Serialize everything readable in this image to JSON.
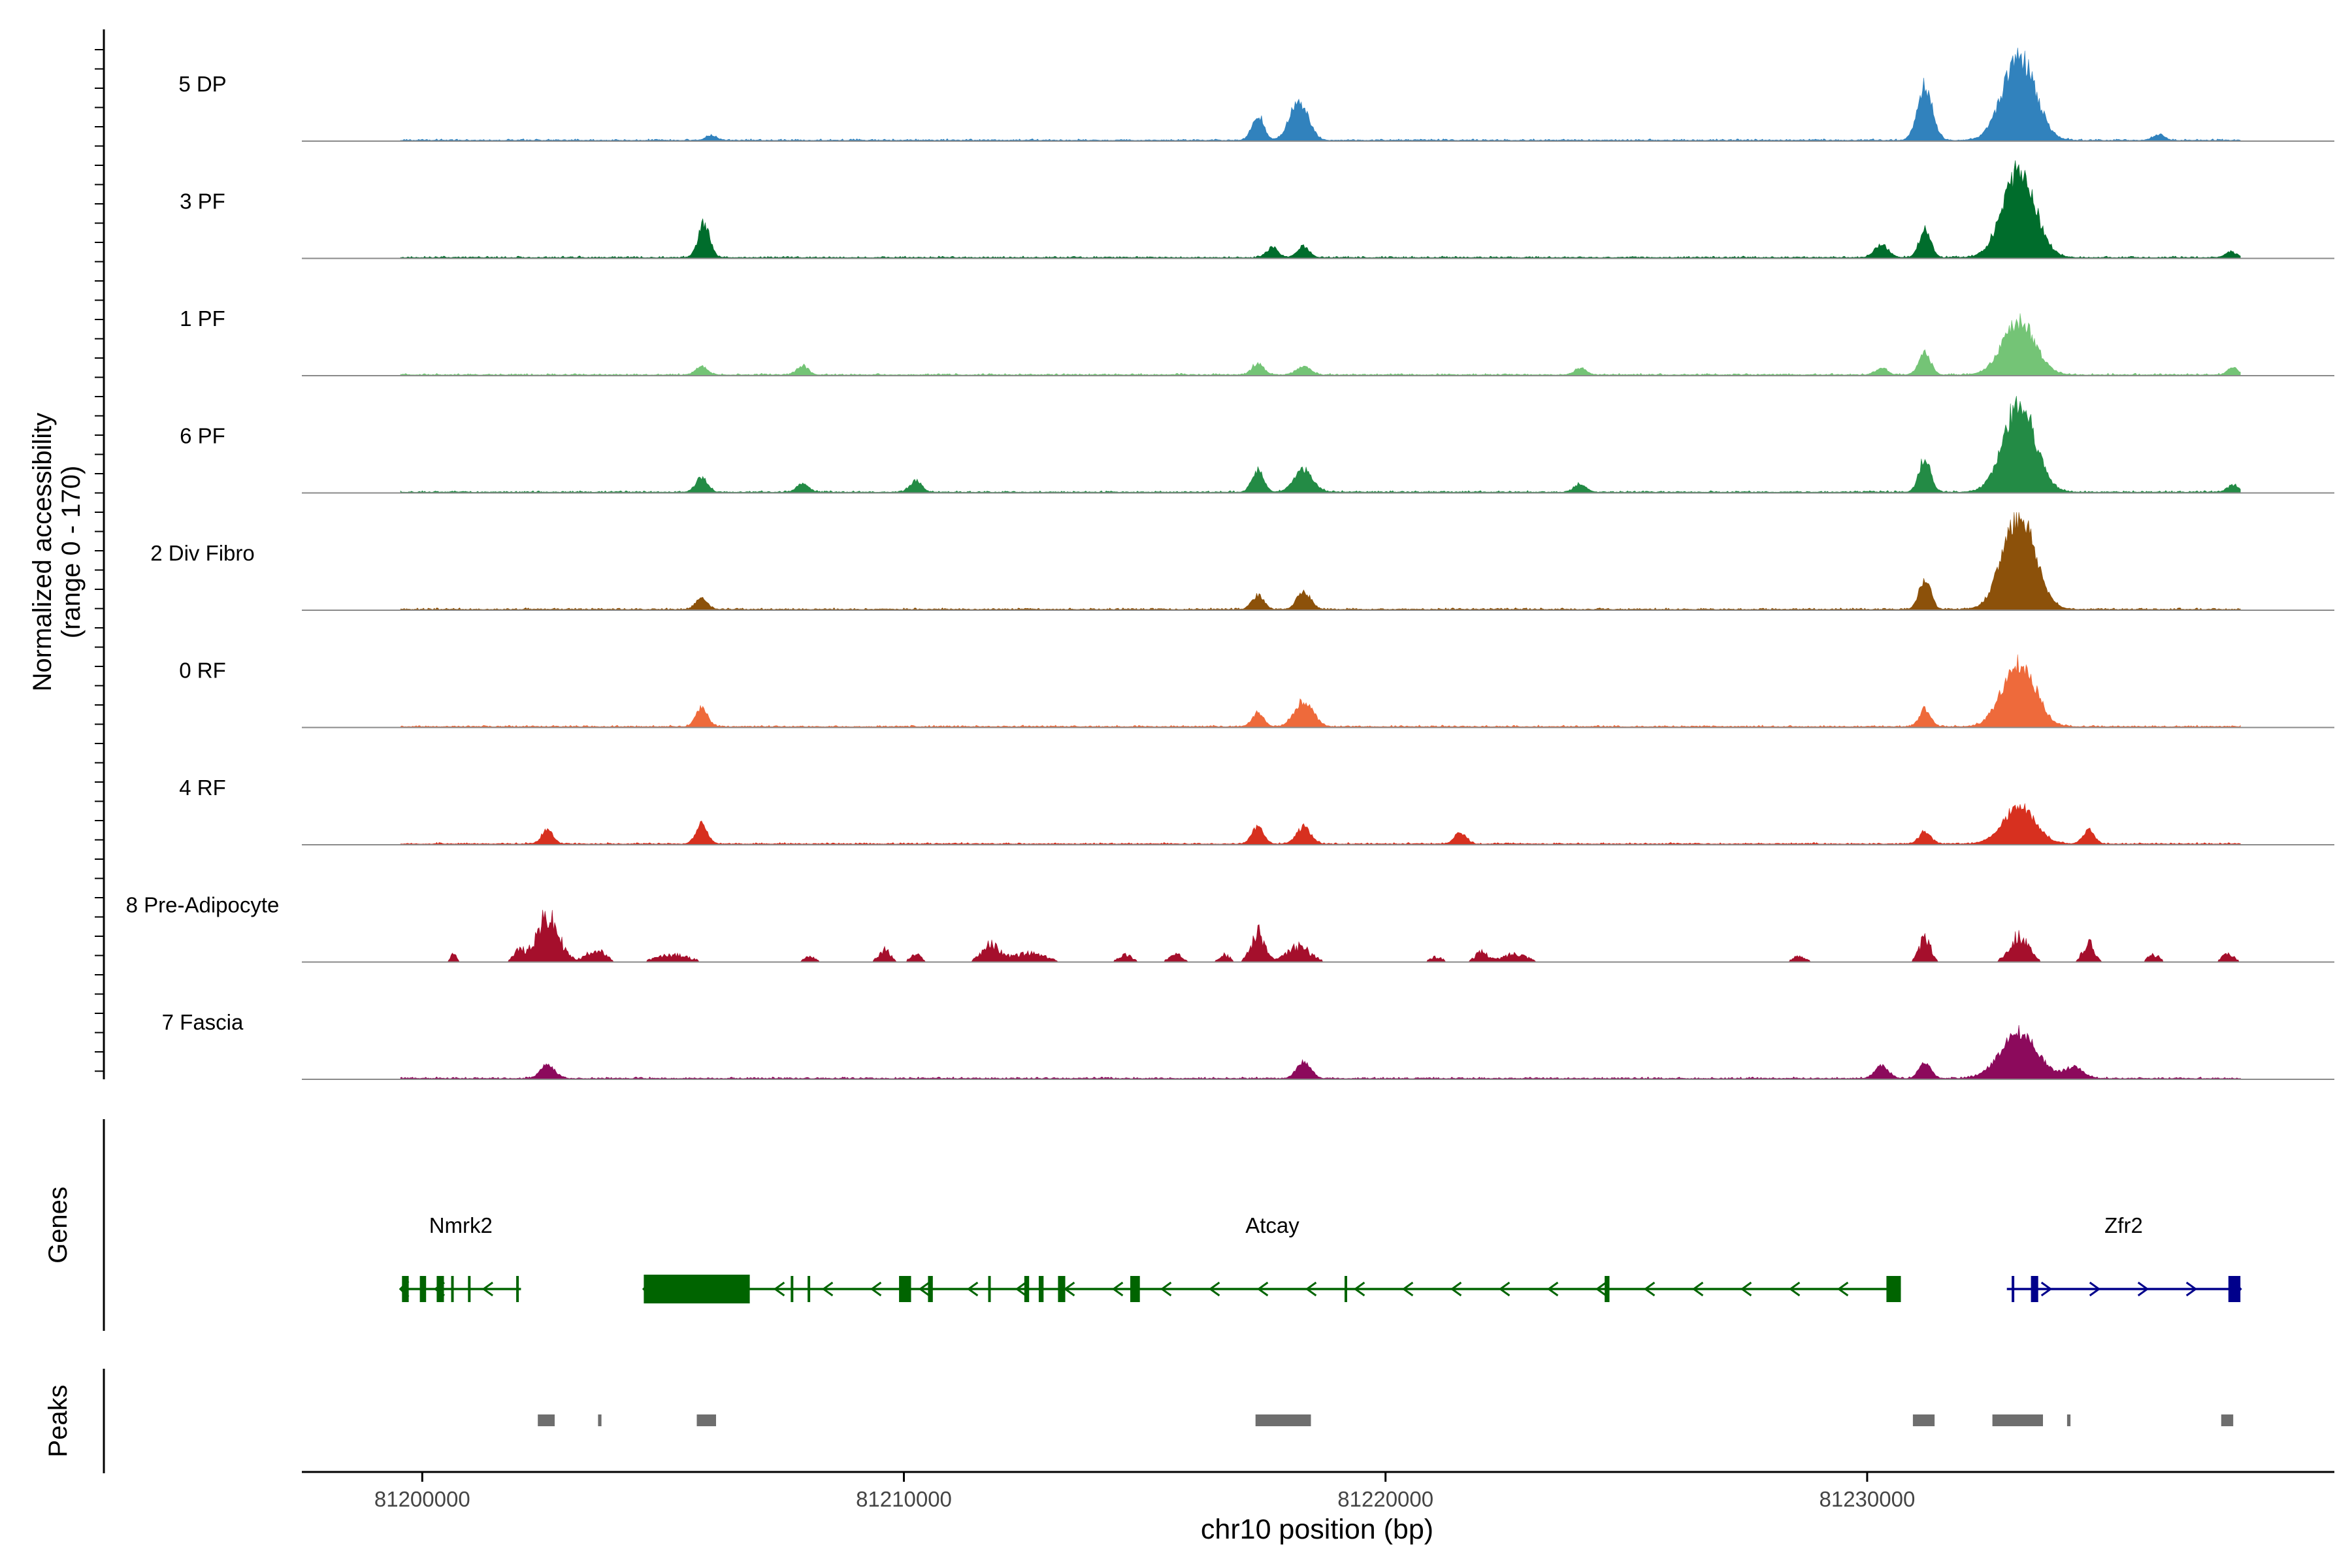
{
  "chart_data": {
    "type": "area",
    "title": "",
    "coverage_panel": {
      "ylabel_line1": "Normalized accessibility",
      "ylabel_line2": "(range 0 - 170)",
      "ylim": [
        0,
        170
      ],
      "tracks": [
        {
          "name": "5 DP",
          "color": "#3182BD",
          "peaks": [
            [
              81206000,
              8,
              250
            ],
            [
              81217350,
              45,
              250
            ],
            [
              81218200,
              70,
              400
            ],
            [
              81231200,
              95,
              320
            ],
            [
              81233150,
              150,
              700
            ],
            [
              81236050,
              10,
              250
            ]
          ]
        },
        {
          "name": "3 PF",
          "color": "#006D2C",
          "peaks": [
            [
              81205850,
              60,
              250
            ],
            [
              81217650,
              18,
              250
            ],
            [
              81218300,
              20,
              250
            ],
            [
              81230300,
              22,
              300
            ],
            [
              81231200,
              50,
              250
            ],
            [
              81233150,
              155,
              700
            ],
            [
              81237550,
              10,
              250
            ]
          ]
        },
        {
          "name": "1 PF",
          "color": "#74C476",
          "peaks": [
            [
              81205800,
              15,
              250
            ],
            [
              81207900,
              15,
              250
            ],
            [
              81217350,
              20,
              250
            ],
            [
              81218300,
              15,
              300
            ],
            [
              81224050,
              12,
              250
            ],
            [
              81230300,
              12,
              250
            ],
            [
              81231200,
              40,
              250
            ],
            [
              81233150,
              95,
              700
            ],
            [
              81237600,
              12,
              250
            ]
          ]
        },
        {
          "name": "6 PF",
          "color": "#238B45",
          "peaks": [
            [
              81205800,
              25,
              250
            ],
            [
              81207900,
              15,
              250
            ],
            [
              81210250,
              20,
              250
            ],
            [
              81217350,
              40,
              250
            ],
            [
              81218300,
              40,
              400
            ],
            [
              81224050,
              15,
              250
            ],
            [
              81231200,
              60,
              250
            ],
            [
              81233150,
              155,
              700
            ],
            [
              81237600,
              12,
              250
            ]
          ]
        },
        {
          "name": "2 Div Fibro",
          "color": "#8C510A",
          "peaks": [
            [
              81205800,
              20,
              250
            ],
            [
              81217350,
              25,
              250
            ],
            [
              81218300,
              30,
              300
            ],
            [
              81231200,
              55,
              250
            ],
            [
              81233150,
              170,
              700
            ]
          ]
        },
        {
          "name": "0 RF",
          "color": "#EE6A3B",
          "peaks": [
            [
              81205800,
              35,
              250
            ],
            [
              81217350,
              25,
              250
            ],
            [
              81218300,
              45,
              400
            ],
            [
              81231200,
              30,
              250
            ],
            [
              81233150,
              115,
              700
            ]
          ]
        },
        {
          "name": "4 RF",
          "color": "#D7301F",
          "peaks": [
            [
              81202600,
              25,
              250
            ],
            [
              81205800,
              35,
              250
            ],
            [
              81217350,
              30,
              250
            ],
            [
              81218300,
              30,
              300
            ],
            [
              81221550,
              20,
              250
            ],
            [
              81231200,
              22,
              250
            ],
            [
              81233150,
              65,
              700
            ],
            [
              81234600,
              25,
              250
            ]
          ]
        },
        {
          "name": "8 Pre-Adipocyte",
          "color": "#A50F2C",
          "peaks": [
            [
              81200650,
              15,
              150
            ],
            [
              81202000,
              22,
              250
            ],
            [
              81202600,
              90,
              500
            ],
            [
              81203600,
              25,
              400
            ],
            [
              81205200,
              15,
              700
            ],
            [
              81208050,
              12,
              250
            ],
            [
              81209600,
              25,
              250
            ],
            [
              81210250,
              15,
              250
            ],
            [
              81211800,
              35,
              400
            ],
            [
              81212600,
              18,
              700
            ],
            [
              81214600,
              15,
              300
            ],
            [
              81215650,
              15,
              300
            ],
            [
              81216650,
              15,
              250
            ],
            [
              81217350,
              60,
              300
            ],
            [
              81218200,
              32,
              500
            ],
            [
              81221050,
              10,
              300
            ],
            [
              81222000,
              20,
              300
            ],
            [
              81222700,
              18,
              500
            ],
            [
              81228600,
              12,
              300
            ],
            [
              81231200,
              48,
              250
            ],
            [
              81233150,
              55,
              400
            ],
            [
              81234600,
              40,
              250
            ],
            [
              81235950,
              15,
              250
            ],
            [
              81237500,
              18,
              250
            ]
          ]
        },
        {
          "name": "7 Fascia",
          "color": "#8C0A5C",
          "peaks": [
            [
              81202600,
              25,
              300
            ],
            [
              81218300,
              30,
              300
            ],
            [
              81230300,
              22,
              300
            ],
            [
              81231200,
              30,
              250
            ],
            [
              81233150,
              80,
              800
            ],
            [
              81234300,
              20,
              400
            ]
          ]
        }
      ]
    },
    "genes_panel": {
      "ylabel": "Genes",
      "genes": [
        {
          "name": "Nmrk2",
          "strand": "-",
          "color": "#006400",
          "start": 81199550,
          "end": 81202050,
          "exons": [
            [
              81199580,
              81199720
            ],
            [
              81199950,
              81200080
            ],
            [
              81200300,
              81200450
            ],
            [
              81200600,
              81200650
            ],
            [
              81200950,
              81201000
            ],
            [
              81201950,
              81202000
            ]
          ]
        },
        {
          "name": "Atcay",
          "strand": "-",
          "color": "#006400",
          "start": 81204600,
          "end": 81230700,
          "exons": [
            [
              81204600,
              81206800
            ],
            [
              81207650,
              81207700
            ],
            [
              81208000,
              81208050
            ],
            [
              81209900,
              81210150
            ],
            [
              81210500,
              81210600
            ],
            [
              81211750,
              81211800
            ],
            [
              81212500,
              81212600
            ],
            [
              81212800,
              81212900
            ],
            [
              81213200,
              81213350
            ],
            [
              81214700,
              81214900
            ],
            [
              81219150,
              81219200
            ],
            [
              81224550,
              81224650
            ],
            [
              81230400,
              81230700
            ]
          ]
        },
        {
          "name": "Zfr2",
          "strand": "+",
          "color": "#00008B",
          "start": 81232900,
          "end": 81237750,
          "exons": [
            [
              81233000,
              81233050
            ],
            [
              81233400,
              81233550
            ],
            [
              81237500,
              81237750
            ]
          ]
        }
      ]
    },
    "peaks_panel": {
      "ylabel": "Peaks",
      "color": "#6E6E6E",
      "regions": [
        [
          81202400,
          81202750
        ],
        [
          81203650,
          81203720
        ],
        [
          81205700,
          81206100
        ],
        [
          81217300,
          81218450
        ],
        [
          81230950,
          81231400
        ],
        [
          81232600,
          81233650
        ],
        [
          81234150,
          81234220
        ],
        [
          81237350,
          81237600
        ]
      ]
    },
    "x_axis": {
      "xlabel": "chr10 position (bp)",
      "xlim": [
        81197500,
        81239700
      ],
      "ticks": [
        81200000,
        81210000,
        81220000,
        81230000
      ],
      "tick_labels": [
        "81200000",
        "81210000",
        "81220000",
        "81230000"
      ],
      "data_start": 81199550,
      "data_end": 81237750
    }
  }
}
